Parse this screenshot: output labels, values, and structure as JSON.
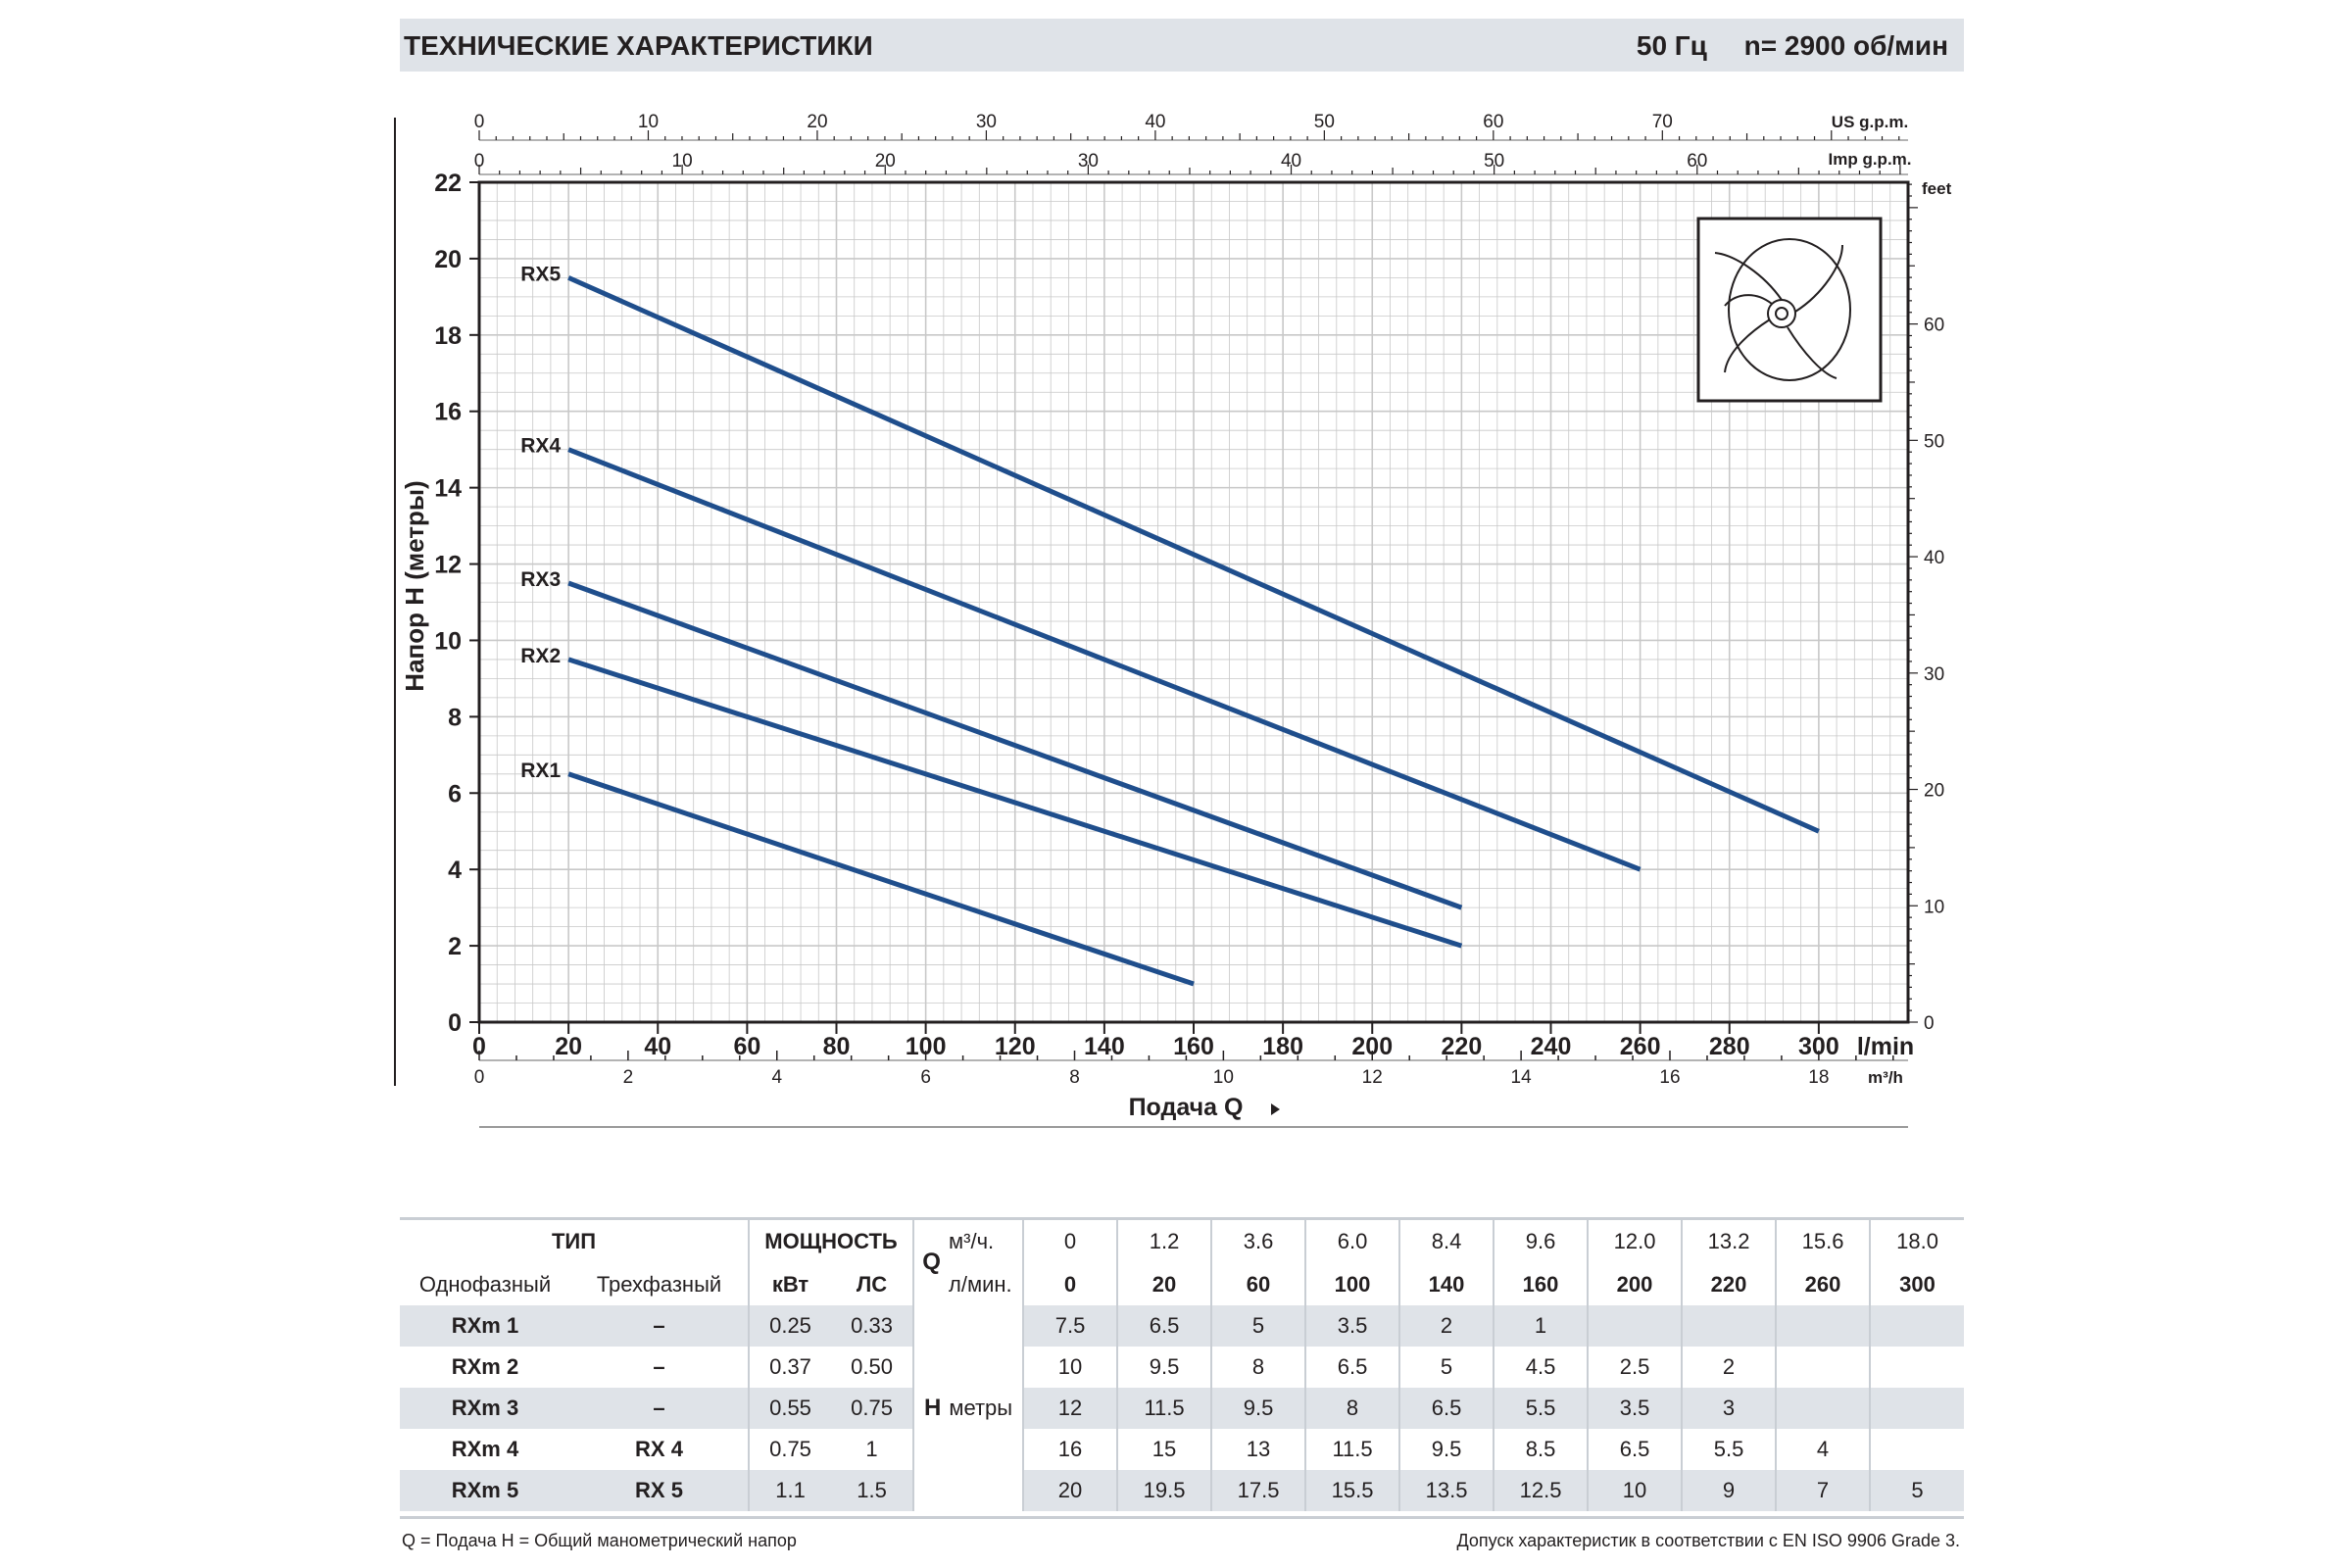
{
  "header": {
    "title": "ТЕХНИЧЕСКИЕ ХАРАКТЕРИСТИКИ",
    "freq": "50 Гц",
    "speed": "n= 2900 об/мин"
  },
  "chart_data": {
    "type": "line",
    "ylabel": "Напор H (метры)",
    "xlabel": "Подача Q",
    "x_unit": "l/min",
    "xlim": [
      0,
      320
    ],
    "ylim": [
      0,
      22
    ],
    "x_ticks": [
      0,
      20,
      40,
      60,
      80,
      100,
      120,
      140,
      160,
      180,
      200,
      220,
      240,
      260,
      280,
      300
    ],
    "y_ticks": [
      0,
      2,
      4,
      6,
      8,
      10,
      12,
      14,
      16,
      18,
      20,
      22
    ],
    "grid": true,
    "secondary_axes": {
      "us_gpm": {
        "unit": "US g.p.m.",
        "ticks": [
          0,
          10,
          20,
          30,
          40,
          50,
          60,
          70
        ]
      },
      "imp_gpm": {
        "unit": "Imp g.p.m.",
        "ticks": [
          0,
          10,
          20,
          30,
          40,
          50,
          60
        ]
      },
      "m3h": {
        "unit": "m³/h",
        "ticks": [
          0,
          2,
          4,
          6,
          8,
          10,
          12,
          14,
          16,
          18
        ]
      },
      "feet": {
        "unit": "feet",
        "ticks": [
          0,
          10,
          20,
          30,
          40,
          50,
          60
        ]
      }
    },
    "series": [
      {
        "name": "RX1",
        "points": [
          [
            20,
            6.5
          ],
          [
            160,
            1
          ]
        ]
      },
      {
        "name": "RX2",
        "points": [
          [
            20,
            9.5
          ],
          [
            220,
            2
          ]
        ]
      },
      {
        "name": "RX3",
        "points": [
          [
            20,
            11.5
          ],
          [
            220,
            3
          ]
        ]
      },
      {
        "name": "RX4",
        "points": [
          [
            20,
            15
          ],
          [
            260,
            4
          ]
        ]
      },
      {
        "name": "RX5",
        "points": [
          [
            20,
            19.5
          ],
          [
            300,
            5
          ]
        ]
      }
    ],
    "colors": {
      "line": "#1f4e8c",
      "grid": "#c8c8c8",
      "axis": "#231f20"
    }
  },
  "table": {
    "type_label": "ТИП",
    "single_phase": "Однофазный",
    "three_phase": "Трехфазный",
    "power_label": "МОЩНОСТЬ",
    "kw": "кВт",
    "hp": "ЛС",
    "q_label": "Q",
    "q_unit_m3": "м³/ч.",
    "q_unit_l": "л/мин.",
    "h_label": "H",
    "h_unit": "метры",
    "q_m3": [
      "0",
      "1.2",
      "3.6",
      "6.0",
      "8.4",
      "9.6",
      "12.0",
      "13.2",
      "15.6",
      "18.0"
    ],
    "q_l": [
      "0",
      "20",
      "60",
      "100",
      "140",
      "160",
      "200",
      "220",
      "260",
      "300"
    ],
    "rows": [
      {
        "single": "RXm 1",
        "three": "–",
        "kw": "0.25",
        "hp": "0.33",
        "h": [
          "7.5",
          "6.5",
          "5",
          "3.5",
          "2",
          "1",
          "",
          "",
          "",
          ""
        ]
      },
      {
        "single": "RXm 2",
        "three": "–",
        "kw": "0.37",
        "hp": "0.50",
        "h": [
          "10",
          "9.5",
          "8",
          "6.5",
          "5",
          "4.5",
          "2.5",
          "2",
          "",
          ""
        ]
      },
      {
        "single": "RXm 3",
        "three": "–",
        "kw": "0.55",
        "hp": "0.75",
        "h": [
          "12",
          "11.5",
          "9.5",
          "8",
          "6.5",
          "5.5",
          "3.5",
          "3",
          "",
          ""
        ]
      },
      {
        "single": "RXm 4",
        "three": "RX 4",
        "kw": "0.75",
        "hp": "1",
        "h": [
          "16",
          "15",
          "13",
          "11.5",
          "9.5",
          "8.5",
          "6.5",
          "5.5",
          "4",
          ""
        ]
      },
      {
        "single": "RXm 5",
        "three": "RX 5",
        "kw": "1.1",
        "hp": "1.5",
        "h": [
          "20",
          "19.5",
          "17.5",
          "15.5",
          "13.5",
          "12.5",
          "10",
          "9",
          "7",
          "5"
        ]
      }
    ]
  },
  "footer": {
    "left": "Q = Подача   H = Общий манометрический напор",
    "right": "Допуск характеристик в соответствии с EN ISO 9906 Grade 3."
  }
}
